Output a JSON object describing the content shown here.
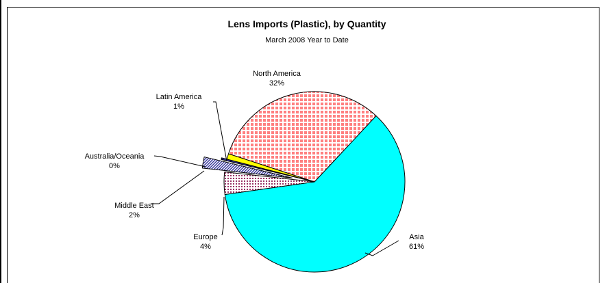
{
  "chart_data": {
    "type": "pie",
    "title": "Lens Imports (Plastic), by Quantity",
    "subtitle": "March 2008 Year to Date",
    "slices": [
      {
        "name": "Asia",
        "value": 61,
        "label": "61%",
        "color": "#00ffff",
        "pattern": "solid"
      },
      {
        "name": "Europe",
        "value": 4,
        "label": "4%",
        "color": "#993366",
        "pattern": "dots"
      },
      {
        "name": "Middle East",
        "value": 2,
        "label": "2%",
        "color": "#333399",
        "pattern": "diagonal"
      },
      {
        "name": "Australia/Oceania",
        "value": 0.3,
        "label": "0%",
        "color": "#333399",
        "pattern": "solid"
      },
      {
        "name": "Latin America",
        "value": 1,
        "label": "1%",
        "color": "#ffff00",
        "pattern": "solid"
      },
      {
        "name": "North America",
        "value": 32,
        "label": "32%",
        "color": "#ff8080",
        "pattern": "grid"
      }
    ]
  }
}
